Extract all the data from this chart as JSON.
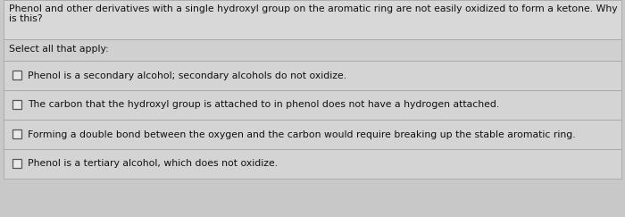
{
  "question_text_line1": "Phenol and other derivatives with a single hydroxyl group on the aromatic ring are not easily oxidized to form a ketone. Why",
  "question_text_line2": "is this?",
  "section_label": "Select all that apply:",
  "options": [
    "Phenol is a secondary alcohol; secondary alcohols do not oxidize.",
    "The carbon that the hydroxyl group is attached to in phenol does not have a hydrogen attached.",
    "Forming a double bond between the oxygen and the carbon would require breaking up the stable aromatic ring.",
    "Phenol is a tertiary alcohol, which does not oxidize."
  ],
  "bg_color": "#c8c8c8",
  "question_bg": "#d8d8d8",
  "section_bg": "#d0d0d0",
  "option_bg": "#d4d4d4",
  "border_color": "#a0a0a0",
  "text_color": "#111111",
  "question_fontsize": 7.8,
  "option_fontsize": 7.8,
  "label_fontsize": 7.8,
  "checkbox_color": "#555555",
  "checkbox_fill": "#e8e8e8"
}
